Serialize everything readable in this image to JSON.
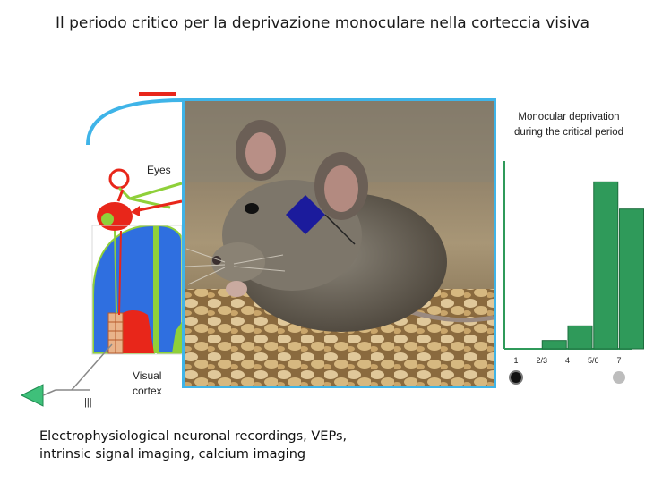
{
  "title": "Il periodo critico per la deprivazione monoculare nella corteccia visiva",
  "labels": {
    "eyes": "Eyes",
    "visual_cortex_line1": "Visual",
    "visual_cortex_line2": "cortex",
    "amplifier_marks": "|||"
  },
  "caption": {
    "line1": "Electrophysiological neuronal recordings, VEPs,",
    "line2": "intrinsic signal imaging, calcium imaging"
  },
  "inset": {
    "title_line1": "Monocular deprivation",
    "title_line2": "during the critical period"
  },
  "colors": {
    "accent_blue": "#3fb4e8",
    "cortex_blue": "#2f6fe0",
    "lgn_red": "#e8261a",
    "pathway_green": "#8fd03a",
    "bar_green": "#2f9a5a",
    "patch_navy": "#1b1b9c"
  },
  "chart_data": {
    "type": "bar",
    "title": "Monocular deprivation during the critical period",
    "categories": [
      "1",
      "2/3",
      "4",
      "5/6",
      "7"
    ],
    "values": [
      0,
      4,
      11,
      80,
      67
    ],
    "ylim": [
      0,
      90
    ],
    "xlabel": "",
    "ylabel": "",
    "grid": false,
    "legend": "none",
    "endpoint_markers": [
      {
        "side": "left",
        "color": "#111111"
      },
      {
        "side": "right",
        "color": "#bdbdbd"
      }
    ]
  }
}
